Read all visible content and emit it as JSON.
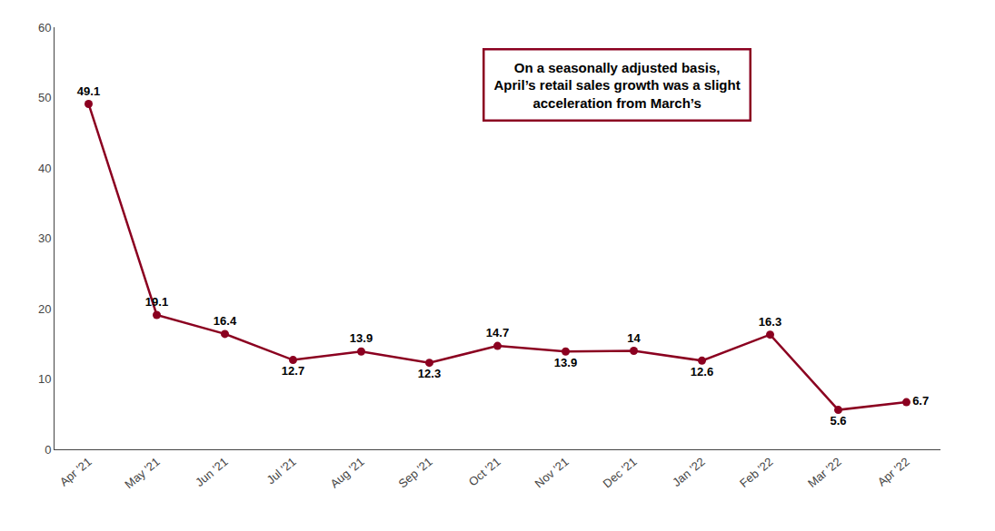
{
  "chart_data": {
    "type": "line",
    "categories": [
      "Apr '21",
      "May '21",
      "Jun '21",
      "Jul '21",
      "Aug '21",
      "Sep '21",
      "Oct '21",
      "Nov '21",
      "Dec '21",
      "Jan '22",
      "Feb '22",
      "Mar '22",
      "Apr '22"
    ],
    "values": [
      49.1,
      19.1,
      16.4,
      12.7,
      13.9,
      12.3,
      14.7,
      13.9,
      14.0,
      12.6,
      16.3,
      5.6,
      6.7
    ],
    "color": "#8B0020",
    "marker": "circle",
    "ylim": [
      0,
      60
    ],
    "yticks": [
      0,
      10,
      20,
      30,
      40,
      50,
      60
    ],
    "grid": false,
    "data_labels": true,
    "annotation": "On a seasonally adjusted basis,\nApril’s retail sales growth was a slight\nacceleration from March’s"
  }
}
